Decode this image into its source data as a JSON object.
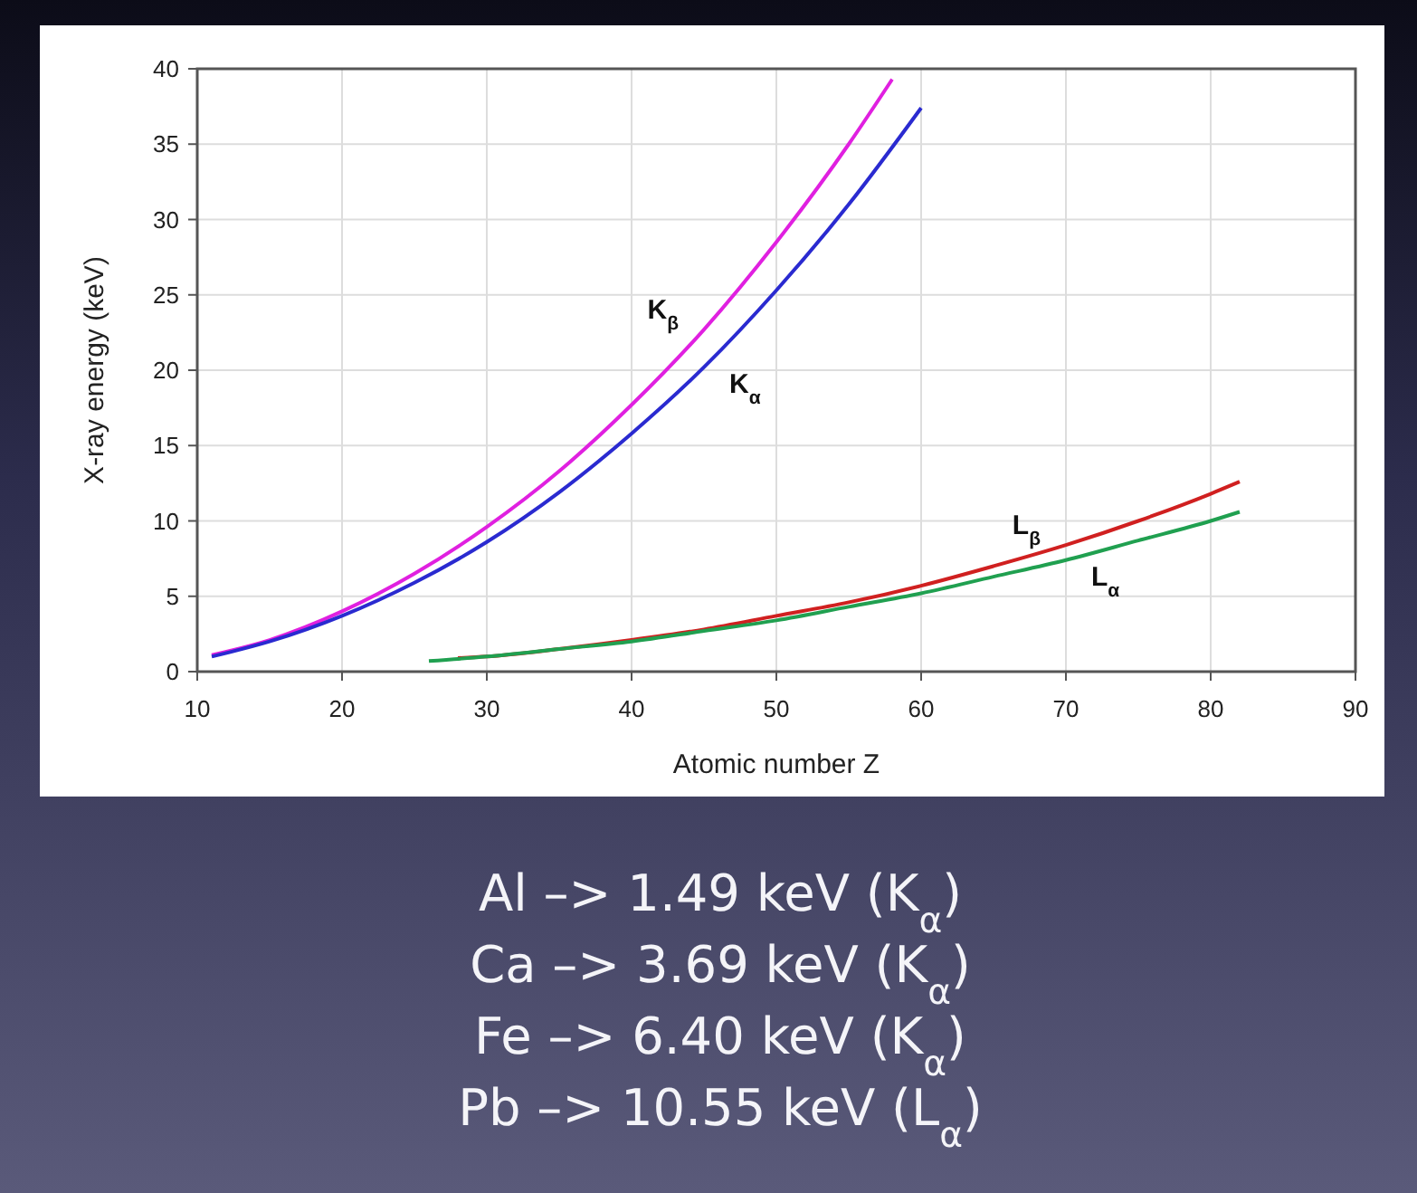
{
  "chart_data": {
    "type": "line",
    "xlabel": "Atomic number Z",
    "ylabel": "X-ray energy (keV)",
    "xlim": [
      10,
      90
    ],
    "xticks": [
      10,
      20,
      30,
      40,
      50,
      60,
      70,
      80,
      90
    ],
    "ylim": [
      0,
      40
    ],
    "yticks": [
      0,
      5,
      10,
      15,
      20,
      25,
      30,
      35,
      40
    ],
    "grid": true,
    "marker": "none",
    "line_style": "solid",
    "series": [
      {
        "name": "K$_{β}$",
        "color": "#e020e0",
        "x": [
          11,
          15,
          20,
          25,
          30,
          35,
          40,
          45,
          50,
          55,
          58
        ],
        "values": [
          1.1,
          2.1,
          4.0,
          6.5,
          9.6,
          13.3,
          17.7,
          22.7,
          28.5,
          35.0,
          39.3
        ]
      },
      {
        "name": "K$_{α}$",
        "color": "#2a2ad0",
        "x": [
          11,
          15,
          20,
          25,
          30,
          35,
          40,
          45,
          50,
          55,
          60
        ],
        "values": [
          1.0,
          2.0,
          3.7,
          5.9,
          8.6,
          11.9,
          15.8,
          20.2,
          25.3,
          31.0,
          37.4
        ]
      },
      {
        "name": "L$_{β}$",
        "color": "#d02020",
        "x": [
          28,
          30,
          35,
          40,
          45,
          50,
          55,
          60,
          65,
          70,
          75,
          80,
          82
        ],
        "values": [
          0.9,
          1.0,
          1.5,
          2.1,
          2.8,
          3.7,
          4.6,
          5.7,
          7.0,
          8.4,
          10.0,
          11.8,
          12.6
        ]
      },
      {
        "name": "L$_{α}$",
        "color": "#20a050",
        "x": [
          26,
          30,
          35,
          40,
          45,
          50,
          55,
          60,
          65,
          70,
          75,
          80,
          82
        ],
        "values": [
          0.7,
          1.0,
          1.5,
          2.0,
          2.7,
          3.4,
          4.3,
          5.2,
          6.3,
          7.4,
          8.7,
          10.0,
          10.6
        ]
      }
    ],
    "annotations": [
      "Al –> 1.49 keV (K$_{α}$)",
      "Ca –> 3.69 keV (K$_{α}$)",
      "Fe –> 6.40 keV (K$_{α}$)",
      "Pb –> 10.55 keV (L$_{α}$)"
    ]
  }
}
